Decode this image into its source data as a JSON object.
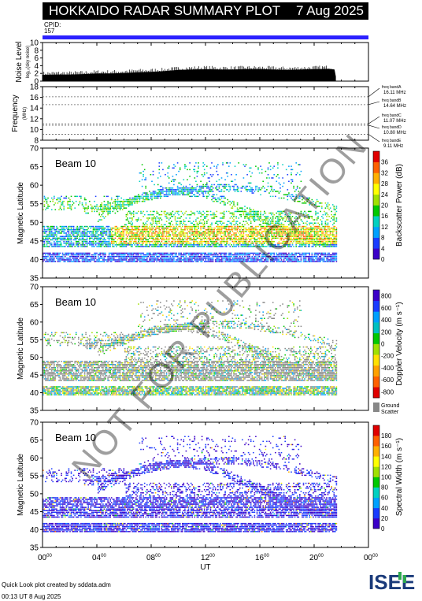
{
  "header": {
    "title": "HOKKAIDO RADAR SUMMARY PLOT",
    "date": "7 Aug 2025",
    "cpid_label": "CPID:",
    "cpid_value": "157"
  },
  "footer": {
    "note": "Quick Look plot created by sddata.adm",
    "stamp": "00:13 UT  8 Aug 2025",
    "logo_text": "ISEE"
  },
  "watermark": "NOT FOR PUBLICATION",
  "colors": {
    "cpid_bar": "#2b20ff",
    "ground_scatter": "#888888",
    "power_scale": [
      "#3b00c8",
      "#1a3cff",
      "#00a0ff",
      "#00d0c0",
      "#00c800",
      "#a0e000",
      "#ffff00",
      "#ffb000",
      "#ff6000",
      "#e00000"
    ],
    "velocity_scale": [
      "#e00000",
      "#ff6000",
      "#ffa000",
      "#ffe000",
      "#a0e000",
      "#00c800",
      "#00c0c0",
      "#00a0ff",
      "#1a3cff",
      "#3b00c8"
    ],
    "width_scale": [
      "#3b00c8",
      "#1a3cff",
      "#00a0ff",
      "#00d0c0",
      "#00c800",
      "#a0e000",
      "#ffff00",
      "#ffb000",
      "#ff6000",
      "#e00000"
    ]
  },
  "chart_data": [
    {
      "type": "area",
      "panel": "noise",
      "ylabel": "Noise Level",
      "ysub": "log₁₀(sky noise)",
      "ylim": [
        0,
        10
      ],
      "yticks": [
        "0",
        "2",
        "4",
        "6",
        "8",
        "10"
      ],
      "xlim": [
        0,
        24
      ],
      "x_hours": [
        0.0,
        1.0,
        2.0,
        3.0,
        4.0,
        5.0,
        6.0,
        7.0,
        8.0,
        9.0,
        10.0,
        11.0,
        12.0,
        13.0,
        14.0,
        15.0,
        16.0,
        17.0,
        18.0,
        19.0,
        20.0,
        21.0,
        21.5,
        21.6
      ],
      "values": [
        1.6,
        1.7,
        1.7,
        1.8,
        2.0,
        2.0,
        2.1,
        2.3,
        2.4,
        2.6,
        2.9,
        3.0,
        3.1,
        3.0,
        3.0,
        3.1,
        3.1,
        3.0,
        2.9,
        3.0,
        3.1,
        3.2,
        3.0,
        1.2
      ]
    },
    {
      "type": "line",
      "panel": "frequency",
      "ylabel": "Frequency",
      "ysub": "(MHz)",
      "ylim": [
        8,
        18
      ],
      "yticks": [
        "8",
        "10",
        "12",
        "14",
        "16",
        "18"
      ],
      "bands": [
        {
          "label": "freq bandA",
          "value": "16.11 MHz",
          "mhz": 16.11
        },
        {
          "label": "freq bandB",
          "value": "14.64 MHz",
          "mhz": 14.64
        },
        {
          "label": "freq bandC",
          "value": "11.07 MHz",
          "mhz": 11.07
        },
        {
          "label": "freq bandD",
          "value": "10.80 MHz",
          "mhz": 10.8
        },
        {
          "label": "freq bandE",
          "value": "9.11 MHz",
          "mhz": 9.11
        }
      ]
    },
    {
      "type": "heatmap",
      "panel": "power",
      "beam": "Beam 10",
      "ylabel": "Magnetic Latitude",
      "ylim": [
        35,
        70
      ],
      "yticks": [
        "35",
        "40",
        "45",
        "50",
        "55",
        "60",
        "65",
        "70"
      ],
      "colorbar_label": "Backscatter Power (dB)",
      "colorbar_ticks": [
        "0",
        "4",
        "8",
        "12",
        "16",
        "20",
        "24",
        "28",
        "32",
        "36"
      ],
      "colorbar_range": [
        0,
        36
      ]
    },
    {
      "type": "heatmap",
      "panel": "velocity",
      "beam": "Beam 10",
      "ylabel": "Magnetic Latitude",
      "ylim": [
        35,
        70
      ],
      "yticks": [
        "35",
        "40",
        "45",
        "50",
        "55",
        "60",
        "65",
        "70"
      ],
      "colorbar_label": "Doppler Velocity (m s⁻¹)",
      "colorbar_ticks": [
        "-800",
        "-600",
        "-400",
        "-200",
        "0",
        "200",
        "400",
        "600",
        "800"
      ],
      "colorbar_range": [
        -800,
        800
      ],
      "ground_label": "Ground Scatter"
    },
    {
      "type": "heatmap",
      "panel": "width",
      "beam": "Beam 10",
      "ylabel": "Magnetic Latitude",
      "ylim": [
        35,
        70
      ],
      "yticks": [
        "35",
        "40",
        "45",
        "50",
        "55",
        "60",
        "65",
        "70"
      ],
      "colorbar_label": "Spectral Width (m s⁻¹)",
      "colorbar_ticks": [
        "0",
        "20",
        "40",
        "60",
        "80",
        "100",
        "120",
        "140",
        "160",
        "180"
      ],
      "colorbar_range": [
        0,
        180
      ],
      "xlabel": "UT",
      "xticks": [
        "00",
        "04",
        "08",
        "12",
        "16",
        "20",
        "00"
      ],
      "xlim": [
        0,
        24
      ]
    }
  ]
}
